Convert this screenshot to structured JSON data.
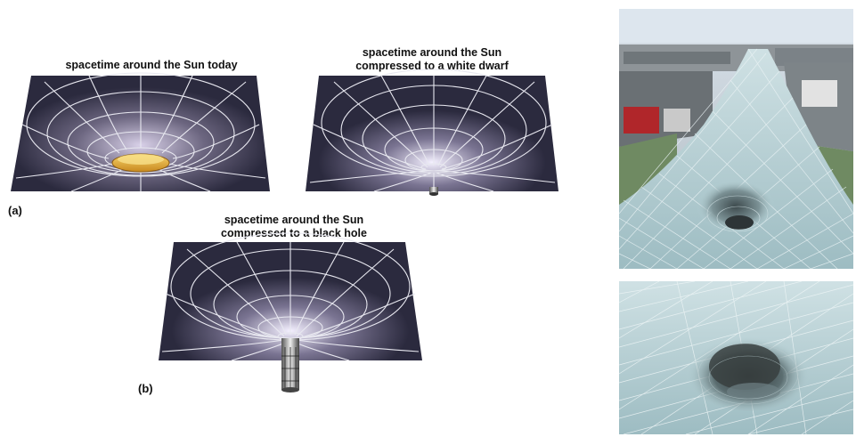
{
  "figure": {
    "panel_a_label": "(a)",
    "panel_b_label": "(b)",
    "diagrams": [
      {
        "id": "sun",
        "caption_lines": [
          "spacetime around the Sun today"
        ]
      },
      {
        "id": "white-dwarf",
        "caption_lines": [
          "spacetime around the Sun",
          "compressed to a white dwarf"
        ]
      },
      {
        "id": "black-hole",
        "caption_lines": [
          "spacetime around the Sun",
          "compressed to a black hole"
        ]
      }
    ],
    "colors": {
      "sheet": "#2b2a3e",
      "grid": "#e8e8f0",
      "sun": "#e8b43a",
      "glass": "#b9d4d8",
      "sky": "#c9d6e2"
    }
  }
}
